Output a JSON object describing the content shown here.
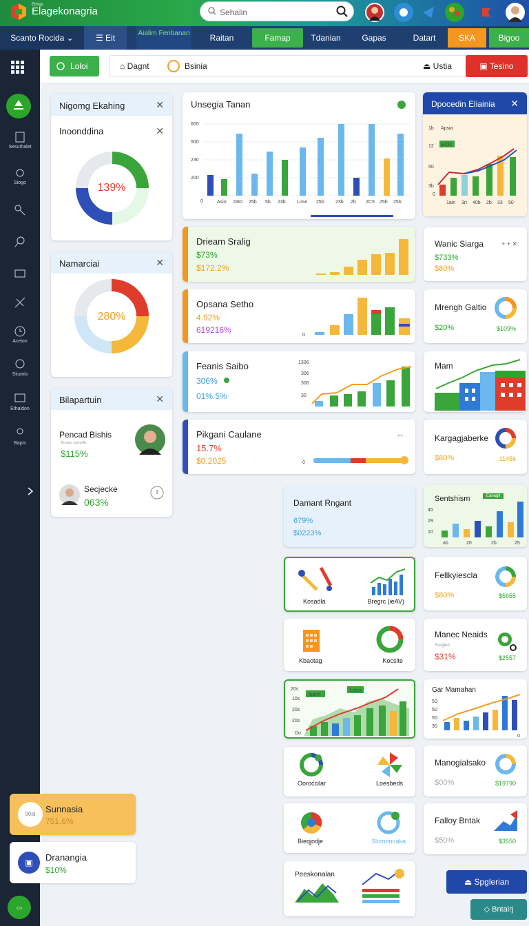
{
  "app": {
    "brand_small": "Elmgs",
    "brand": "Elagekonagria",
    "search_placeholder": "Sehalin"
  },
  "nav": [
    "Scanto Rocida ⌄",
    "☰ Eit",
    "Aialim Fenbanan",
    "Raitan",
    "Famap",
    "Tdanian",
    "Gapas",
    "Datart",
    "SKA",
    "Bigoo"
  ],
  "toolbar": {
    "btn1": "Loloi",
    "tab1": "Dagnt",
    "tab2": "Bsinia",
    "user": "Ustia",
    "export": "Tesino"
  },
  "sidebar": [
    "Sesuthalet",
    "Siogo",
    "",
    "",
    "",
    "",
    "Aceion",
    "Sicanis",
    "Ethaldon",
    "Bapis"
  ],
  "cards": {
    "c1": {
      "title": "Nigomg Ekahing",
      "sub": "Inoonddina",
      "pct": "139%"
    },
    "c2": {
      "title": "Namarciai",
      "pct": "280%"
    },
    "c3": {
      "title": "Bilapartuin",
      "p1name": "Pencad Bishis",
      "p1small": "Rcodus cacholfis",
      "p1val": "$115%",
      "p2name": "Secjecke",
      "p2val": "063%"
    },
    "chart": {
      "title": "Unsegia Tanan"
    },
    "blue": {
      "title": "Dpocedin Eliainia",
      "legend": "Apsia",
      "badge": "ECis"
    },
    "r1": {
      "title": "Drieam Sralig",
      "v1": "$73%",
      "v2": "$172.2%"
    },
    "r2": {
      "title": "Opsana Setho",
      "v1": "4.92%",
      "v2": "619216%"
    },
    "r3": {
      "title": "Feanis Saibo",
      "v1": "306%",
      "v2": "01%.5%"
    },
    "r4": {
      "title": "Pikgani Caulane",
      "v1": "15.7%",
      "v2": "$0.2025"
    },
    "s1": {
      "title": "Wanic Siarga",
      "v1": "$733%",
      "v2": "$80%"
    },
    "s2": {
      "title": "Mrengh Galtio",
      "v1": "$20%",
      "v2": "$109%"
    },
    "s3": {
      "title": "Mam"
    },
    "s4": {
      "title": "Kargagjaberke",
      "v1": "$80%",
      "v2": "11456"
    },
    "dam": {
      "title": "Damant Rngant",
      "v1": "679%",
      "v2": "$0223%"
    },
    "sent": {
      "title": "Sentshism",
      "badge": "Eanaglt"
    },
    "fel": {
      "title": "Fellkyiescla",
      "v1": "$80%",
      "v2": "$5655"
    },
    "manec": {
      "title": "Manec Neaids",
      "sub": "Sceglerl",
      "v1": "$31%",
      "v2": "$2557"
    },
    "gar": {
      "title": "Gar Mamahan"
    },
    "manog": {
      "title": "Manogialsako",
      "v1": "$00%",
      "v2": "$19790"
    },
    "fall": {
      "title": "Falloy Bntak",
      "v1": "$50%",
      "v2": "$3550"
    },
    "k1": {
      "a": "Kosadla",
      "b": "Bregrc (ieAV)"
    },
    "k2": {
      "a": "Kbaotag",
      "b": "Kocsite"
    },
    "k3": {
      "badge1": "Isann",
      "badge2": "Lmcs"
    },
    "k4": {
      "a": "Ooroccilar",
      "b": "Loesbeds"
    },
    "k5": {
      "a": "Bieqjodje",
      "b": "Slomonoaka"
    },
    "k6": {
      "a": "Peeskonalan"
    },
    "sun": {
      "title": "Sunnasia",
      "val": "751.6%",
      "badge": "90ld"
    },
    "dran": {
      "title": "Dranangia",
      "val": "$10%"
    },
    "btn_sp": "Spglerian",
    "btn_bt": "Bntairj"
  }
}
